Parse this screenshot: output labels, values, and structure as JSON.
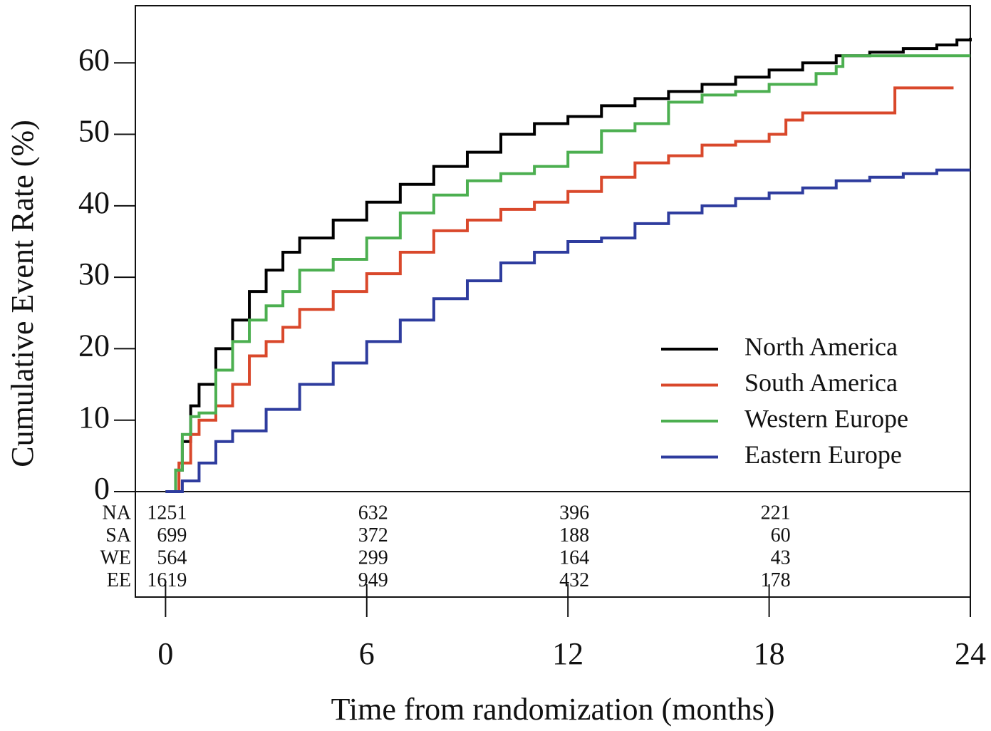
{
  "chart_data": {
    "type": "line",
    "step": true,
    "y_label": "Cumulative Event Rate (%)",
    "x_label": "Time from randomization (months)",
    "xlim": [
      -0.9,
      24
    ],
    "ylim": [
      0,
      68
    ],
    "xticks": [
      0,
      6,
      12,
      18,
      24
    ],
    "yticks": [
      0,
      10,
      20,
      30,
      40,
      50,
      60
    ],
    "grid": false,
    "legend_position": "lower-right",
    "series": [
      {
        "name": "North America",
        "color": "#000000",
        "x": [
          0,
          0.3,
          0.5,
          0.75,
          1,
          1.5,
          2,
          2.5,
          3,
          3.5,
          4,
          5,
          6,
          7,
          8,
          9,
          10,
          11,
          12,
          13,
          14,
          15,
          16,
          17,
          18,
          19,
          20,
          21,
          22,
          23,
          23.6,
          24
        ],
        "values": [
          0,
          3,
          7,
          12,
          15,
          20,
          24,
          28,
          31,
          33.5,
          35.5,
          38,
          40.5,
          43,
          45.5,
          47.5,
          50,
          51.5,
          52.5,
          54,
          55,
          56,
          57,
          58,
          59,
          60,
          61,
          61.5,
          62,
          62.5,
          63.2,
          63.5
        ]
      },
      {
        "name": "South America",
        "color": "#d9482b",
        "x": [
          0,
          0.4,
          0.75,
          1,
          1.5,
          2,
          2.5,
          3,
          3.5,
          4,
          5,
          6,
          7,
          8,
          9,
          10,
          11,
          12,
          13,
          14,
          15,
          16,
          17,
          18,
          18.5,
          19,
          21.75,
          23.5
        ],
        "values": [
          0,
          4,
          8,
          10,
          12,
          15,
          19,
          21,
          23,
          25.5,
          28,
          30.5,
          33.5,
          36.5,
          38,
          39.5,
          40.5,
          42,
          44,
          46,
          47,
          48.5,
          49,
          50,
          52,
          53,
          56.5,
          56.5
        ]
      },
      {
        "name": "Western Europe",
        "color": "#4caf50",
        "x": [
          0,
          0.3,
          0.5,
          0.75,
          1,
          1.5,
          2,
          2.5,
          3,
          3.5,
          4,
          5,
          6,
          7,
          8,
          9,
          10,
          11,
          12,
          13,
          14,
          15,
          16,
          17,
          18,
          19.4,
          20,
          20.2,
          24
        ],
        "values": [
          0,
          3,
          8,
          10.5,
          11,
          17,
          21,
          24,
          26,
          28,
          31,
          32.5,
          35.5,
          39,
          41.5,
          43.5,
          44.5,
          45.5,
          47.5,
          50.5,
          51.5,
          54.5,
          55.5,
          56,
          57,
          58.5,
          59.5,
          61,
          61
        ]
      },
      {
        "name": "Eastern Europe",
        "color": "#2e3c9e",
        "x": [
          0,
          0.5,
          1,
          1.5,
          2,
          3,
          4,
          5,
          6,
          7,
          8,
          9,
          10,
          11,
          12,
          13,
          14,
          15,
          16,
          17,
          18,
          19,
          20,
          21,
          22,
          23,
          24
        ],
        "values": [
          0,
          1.5,
          4,
          7,
          8.5,
          11.5,
          15,
          18,
          21,
          24,
          27,
          29.5,
          32,
          33.5,
          35,
          35.5,
          37.5,
          39,
          40,
          41,
          41.8,
          42.5,
          43.5,
          44,
          44.5,
          45,
          45
        ]
      }
    ],
    "risk_table": {
      "labels": [
        "NA",
        "SA",
        "WE",
        "EE"
      ],
      "times": [
        0,
        6,
        12,
        18
      ],
      "counts": [
        [
          1251,
          632,
          396,
          221
        ],
        [
          699,
          372,
          188,
          60
        ],
        [
          564,
          299,
          164,
          43
        ],
        [
          1619,
          949,
          432,
          178
        ]
      ]
    }
  }
}
